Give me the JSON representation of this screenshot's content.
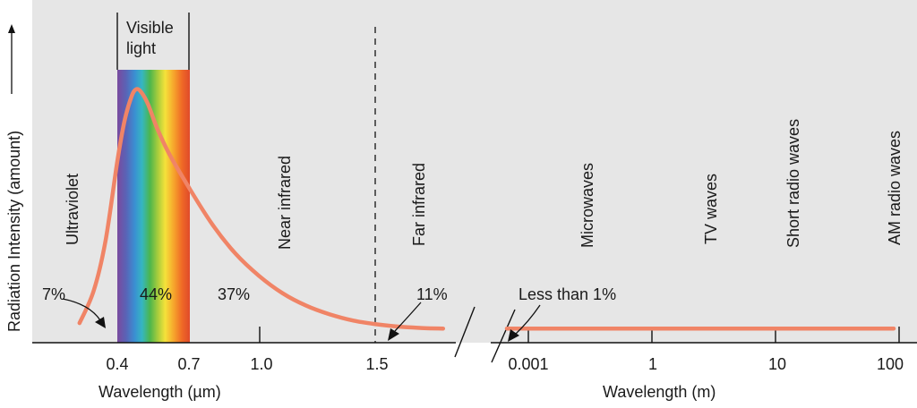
{
  "chart_data": {
    "type": "line",
    "title": "",
    "ylabel": "Radiation Intensity (amount)",
    "xlabel_left": "Wavelength (µm)",
    "xlabel_right": "Wavelength (m)",
    "x_ticks_left": [
      "0.4",
      "0.7",
      "1.0",
      "1.5"
    ],
    "x_ticks_right": [
      "0.001",
      "1",
      "10",
      "100"
    ],
    "visible_band": {
      "label": "Visible light",
      "from_um": 0.4,
      "to_um": 0.7
    },
    "regions": [
      {
        "name": "Ultraviolet",
        "percent": "7%"
      },
      {
        "name": "Visible light",
        "percent": "44%"
      },
      {
        "name": "Near infrared",
        "percent": "37%"
      },
      {
        "name": "Far infrared",
        "percent": "11%"
      },
      {
        "name": "Microwaves",
        "percent": "Less than 1%"
      },
      {
        "name": "TV waves",
        "percent": ""
      },
      {
        "name": "Short radio waves",
        "percent": ""
      },
      {
        "name": "AM radio waves",
        "percent": ""
      }
    ],
    "curve_um": {
      "x": [
        0.24,
        0.3,
        0.35,
        0.4,
        0.43,
        0.46,
        0.48,
        0.5,
        0.53,
        0.57,
        0.62,
        0.7,
        0.8,
        0.9,
        1.0,
        1.1,
        1.2,
        1.3,
        1.4,
        1.5,
        1.6,
        1.7,
        1.78
      ],
      "y": [
        0.05,
        0.18,
        0.38,
        0.7,
        0.86,
        0.96,
        0.99,
        0.98,
        0.93,
        0.83,
        0.73,
        0.6,
        0.45,
        0.33,
        0.24,
        0.17,
        0.12,
        0.085,
        0.06,
        0.045,
        0.035,
        0.03,
        0.028
      ]
    },
    "tail_level": 0.028,
    "colors": {
      "background": "#e6e6e6",
      "curve": "#f08466",
      "axis": "#111111"
    }
  }
}
